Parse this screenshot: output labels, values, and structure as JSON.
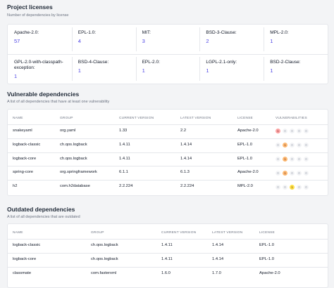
{
  "licenses": {
    "title": "Project licenses",
    "subtitle": "Number of dependencies by license",
    "items": [
      {
        "name": "Apache-2.0:",
        "count": 57
      },
      {
        "name": "EPL-1.0:",
        "count": 4
      },
      {
        "name": "MIT:",
        "count": 3
      },
      {
        "name": "BSD-3-Clause:",
        "count": 2
      },
      {
        "name": "MPL-2.0:",
        "count": 1
      },
      {
        "name": "GPL-2.0-with-classpath-exception:",
        "count": 1
      },
      {
        "name": "BSD-4-Clause:",
        "count": 1
      },
      {
        "name": "EPL-2.0:",
        "count": 1
      },
      {
        "name": "LGPL-2.1-only:",
        "count": 1
      },
      {
        "name": "BSD-2-Clause:",
        "count": 1
      }
    ]
  },
  "vulnerable": {
    "title": "Vulnerable dependencies",
    "subtitle": "A list of all dependencies that have at least one vulnerability",
    "columns": [
      "NAME",
      "GROUP",
      "CURRENT VERSION",
      "LATEST VERSION",
      "LICENSE",
      "VULNERABILITIES"
    ],
    "rows": [
      {
        "name": "snakeyaml",
        "group": "org.yaml",
        "current": "1.33",
        "latest": "2.2",
        "license": "Apache-2.0",
        "vulnerabilities": [
          1,
          0,
          0,
          0,
          0
        ]
      },
      {
        "name": "logback-classic",
        "group": "ch.qos.logback",
        "current": "1.4.11",
        "latest": "1.4.14",
        "license": "EPL-1.0",
        "vulnerabilities": [
          0,
          1,
          0,
          0,
          0
        ]
      },
      {
        "name": "logback-core",
        "group": "ch.qos.logback",
        "current": "1.4.11",
        "latest": "1.4.14",
        "license": "EPL-1.0",
        "vulnerabilities": [
          0,
          1,
          0,
          0,
          0
        ]
      },
      {
        "name": "spring-core",
        "group": "org.springframework",
        "current": "6.1.1",
        "latest": "6.1.3",
        "license": "Apache-2.0",
        "vulnerabilities": [
          0,
          1,
          0,
          0,
          0
        ]
      },
      {
        "name": "h2",
        "group": "com.h2database",
        "current": "2.2.224",
        "latest": "2.2.224",
        "license": "MPL-2.0",
        "vulnerabilities": [
          0,
          0,
          1,
          0,
          0
        ]
      }
    ]
  },
  "outdated": {
    "title": "Outdated dependencies",
    "subtitle": "A list of all dependencies that are outdated",
    "columns": [
      "NAME",
      "GROUP",
      "CURRENT VERSION",
      "LATEST VERSION",
      "LICENSE"
    ],
    "rows": [
      {
        "name": "logback-classic",
        "group": "ch.qos.logback",
        "current": "1.4.11",
        "latest": "1.4.14",
        "license": "EPL-1.0"
      },
      {
        "name": "logback-core",
        "group": "ch.qos.logback",
        "current": "1.4.11",
        "latest": "1.4.14",
        "license": "EPL-1.0"
      },
      {
        "name": "classmate",
        "group": "com.fasterxml",
        "current": "1.6.0",
        "latest": "1.7.0",
        "license": "Apache-2.0"
      }
    ]
  }
}
